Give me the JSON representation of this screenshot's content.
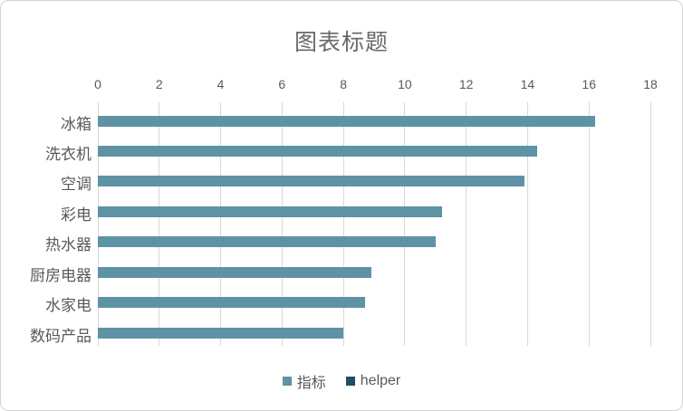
{
  "chart_data": {
    "type": "bar",
    "orientation": "horizontal",
    "title": "图表标题",
    "categories": [
      "冰箱",
      "洗衣机",
      "空调",
      "彩电",
      "热水器",
      "厨房电器",
      "水家电",
      "数码产品"
    ],
    "series": [
      {
        "name": "指标",
        "color": "#5E93A6",
        "values": [
          16.2,
          14.3,
          13.9,
          11.2,
          11.0,
          8.9,
          8.7,
          8.0
        ]
      },
      {
        "name": "helper",
        "color": "#1D4E63",
        "values": [
          0,
          0,
          0,
          0,
          0,
          0,
          0,
          0
        ]
      }
    ],
    "x_axis": {
      "min": 0,
      "max": 18,
      "tick_step": 2,
      "ticks": [
        0,
        2,
        4,
        6,
        8,
        10,
        12,
        14,
        16,
        18
      ],
      "position": "top"
    },
    "grid": true,
    "legend_position": "bottom"
  },
  "style": {
    "bar_color": "#5E93A6",
    "helper_color": "#1D4E63",
    "gridline_color": "#D9D9D9",
    "title_color": "#6A6A6A",
    "label_color": "#595959",
    "border_color": "#D2D2D2",
    "background": "#FFFFFF"
  }
}
